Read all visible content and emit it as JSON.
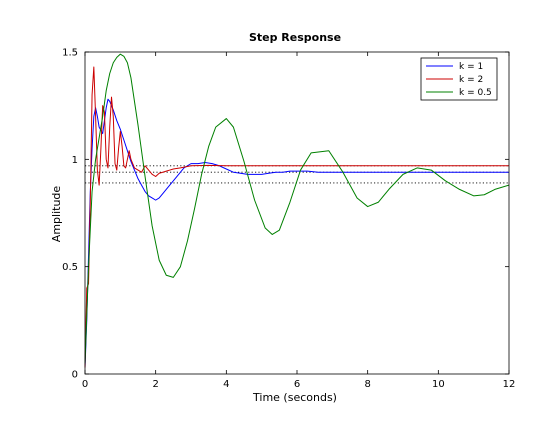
{
  "chart_data": {
    "type": "line",
    "title": "Step Response",
    "xlabel": "Time (seconds)",
    "ylabel": "Amplitude",
    "xlim": [
      0,
      12
    ],
    "ylim": [
      0,
      1.5
    ],
    "xticks": [
      0,
      2,
      4,
      6,
      8,
      10,
      12
    ],
    "xtick_labels": [
      "0",
      "2",
      "4",
      "6",
      "8",
      "10",
      "12"
    ],
    "yticks": [
      0,
      0.5,
      1,
      1.5
    ],
    "ytick_labels": [
      "0",
      "0.5",
      "1",
      "1.5"
    ],
    "grid": false,
    "legend_position": "top-right",
    "reference_lines": {
      "style": "dotted",
      "color": "#000000",
      "y": [
        0.97,
        0.94,
        0.89
      ]
    },
    "series": [
      {
        "name": "k = 1",
        "color": "#0000ff",
        "x": [
          0,
          0.05,
          0.1,
          0.15,
          0.2,
          0.25,
          0.3,
          0.35,
          0.4,
          0.5,
          0.55,
          0.6,
          0.65,
          0.7,
          0.75,
          0.8,
          0.9,
          1.0,
          1.1,
          1.2,
          1.3,
          1.4,
          1.5,
          1.6,
          1.7,
          1.8,
          1.9,
          2.0,
          2.1,
          2.2,
          2.4,
          2.6,
          2.8,
          3.0,
          3.2,
          3.4,
          3.6,
          3.8,
          4.0,
          4.2,
          4.4,
          4.6,
          4.8,
          5.0,
          5.2,
          5.4,
          5.6,
          5.8,
          6.0,
          6.3,
          6.6,
          7.0,
          8.0,
          9.0,
          10.0,
          11.0,
          12.0
        ],
        "y": [
          0.03,
          0.25,
          0.55,
          0.85,
          1.05,
          1.2,
          1.24,
          1.2,
          1.15,
          1.12,
          1.18,
          1.24,
          1.28,
          1.27,
          1.25,
          1.23,
          1.18,
          1.14,
          1.09,
          1.04,
          0.99,
          0.95,
          0.91,
          0.88,
          0.85,
          0.83,
          0.82,
          0.81,
          0.82,
          0.84,
          0.88,
          0.92,
          0.96,
          0.98,
          0.98,
          0.985,
          0.98,
          0.97,
          0.955,
          0.94,
          0.935,
          0.93,
          0.93,
          0.93,
          0.935,
          0.94,
          0.94,
          0.945,
          0.945,
          0.945,
          0.94,
          0.94,
          0.94,
          0.94,
          0.94,
          0.94,
          0.94
        ]
      },
      {
        "name": "k = 2",
        "color": "#cc0000",
        "x": [
          0,
          0.05,
          0.1,
          0.15,
          0.2,
          0.25,
          0.3,
          0.35,
          0.4,
          0.45,
          0.5,
          0.55,
          0.6,
          0.65,
          0.7,
          0.75,
          0.8,
          0.85,
          0.9,
          0.95,
          1.0,
          1.05,
          1.1,
          1.15,
          1.2,
          1.25,
          1.3,
          1.4,
          1.5,
          1.6,
          1.7,
          1.8,
          1.9,
          2.0,
          2.1,
          2.2,
          2.3,
          2.4,
          2.5,
          2.7,
          3.0,
          3.5,
          4.0,
          5.0,
          6.0,
          8.0,
          10.0,
          12.0
        ],
        "y": [
          0.03,
          0.4,
          0.42,
          0.8,
          1.3,
          1.43,
          1.2,
          0.95,
          0.88,
          1.05,
          1.25,
          1.22,
          1.0,
          0.96,
          1.15,
          1.29,
          1.2,
          0.98,
          0.95,
          1.05,
          1.13,
          1.06,
          0.97,
          0.96,
          1.0,
          1.04,
          1.0,
          0.96,
          0.95,
          0.94,
          0.97,
          0.95,
          0.93,
          0.92,
          0.935,
          0.94,
          0.945,
          0.95,
          0.955,
          0.96,
          0.97,
          0.972,
          0.97,
          0.97,
          0.97,
          0.97,
          0.97,
          0.97
        ]
      },
      {
        "name": "k = 0.5",
        "color": "#008000",
        "x": [
          0,
          0.1,
          0.2,
          0.3,
          0.4,
          0.5,
          0.6,
          0.7,
          0.8,
          0.9,
          1.0,
          1.1,
          1.2,
          1.3,
          1.5,
          1.7,
          1.9,
          2.1,
          2.3,
          2.5,
          2.7,
          2.9,
          3.1,
          3.3,
          3.5,
          3.7,
          4.0,
          4.2,
          4.5,
          4.8,
          5.1,
          5.3,
          5.5,
          5.8,
          6.1,
          6.4,
          6.9,
          7.3,
          7.7,
          8.0,
          8.3,
          8.6,
          9.0,
          9.4,
          9.8,
          10.2,
          10.6,
          11.0,
          11.3,
          11.6,
          12.0
        ],
        "y": [
          0.05,
          0.5,
          0.85,
          1.0,
          1.1,
          1.2,
          1.32,
          1.4,
          1.45,
          1.475,
          1.49,
          1.48,
          1.45,
          1.38,
          1.16,
          0.92,
          0.69,
          0.53,
          0.46,
          0.45,
          0.5,
          0.62,
          0.77,
          0.93,
          1.06,
          1.15,
          1.19,
          1.15,
          0.99,
          0.81,
          0.68,
          0.65,
          0.67,
          0.8,
          0.95,
          1.03,
          1.04,
          0.94,
          0.82,
          0.78,
          0.8,
          0.86,
          0.93,
          0.96,
          0.95,
          0.9,
          0.86,
          0.83,
          0.835,
          0.86,
          0.88
        ]
      }
    ]
  }
}
